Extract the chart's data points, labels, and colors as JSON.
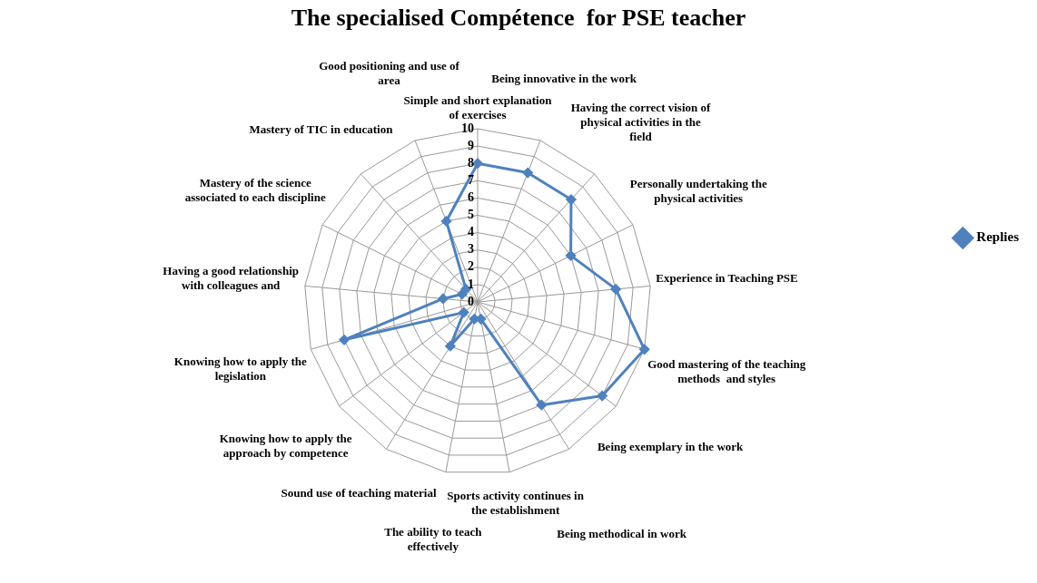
{
  "chart_data": {
    "type": "radar",
    "title": "The specialised Compétence  for PSE teacher",
    "categories": [
      "Simple and short explanation of exercises",
      "Being innovative in the work",
      "Having the correct vision of physical activities in the field",
      "Personally undertaking the physical activities",
      "Experience in Teaching PSE",
      "Good mastering of the teaching methods  and styles",
      "Being exemplary in the work",
      "Being methodical in work",
      "Sports activity continues in the establishment",
      "The ability to teach effectively",
      "Sound use of teaching material",
      "Knowing how to apply the approach by competence",
      "Knowing how to apply the legislation",
      "Having a good relationship with colleagues and",
      "Mastery of the science associated to each discipline",
      "Mastery of TIC in education",
      "Good positioning and use of area"
    ],
    "series": [
      {
        "name": "Replies",
        "color": "#4f81bd",
        "values": [
          8,
          8,
          8,
          6,
          8,
          10,
          9,
          7,
          1,
          1,
          3,
          1,
          8,
          2,
          1,
          1,
          5
        ]
      }
    ],
    "ylim": [
      0,
      10
    ],
    "yticks": [
      0,
      1,
      2,
      3,
      4,
      5,
      6,
      7,
      8,
      9,
      10
    ],
    "grid": true,
    "legend": "right",
    "marker": "diamond"
  }
}
